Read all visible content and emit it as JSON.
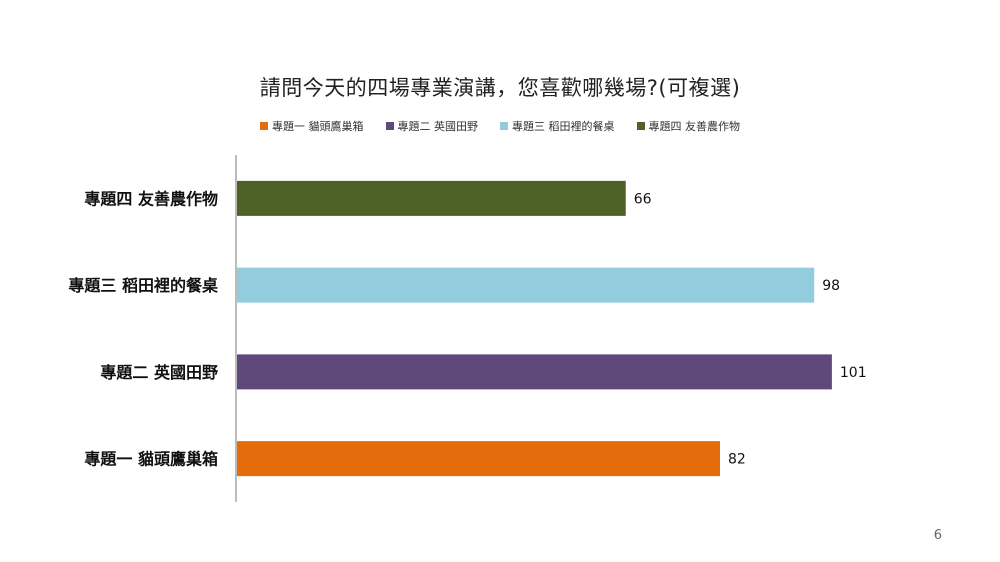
{
  "page_number": "6",
  "chart_data": {
    "type": "bar",
    "orientation": "horizontal",
    "title": "請問今天的四場專業演講，您喜歡哪幾場?(可複選)",
    "xlabel": "",
    "ylabel": "",
    "xlim": [
      0,
      110
    ],
    "grid": false,
    "legend_position": "top",
    "categories": [
      "專題四 友善農作物",
      "專題三 稻田裡的餐桌",
      "專題二 英國田野",
      "專題一 貓頭鷹巢箱"
    ],
    "values": [
      66,
      98,
      101,
      82
    ],
    "colors": [
      "#4e6228",
      "#93cddd",
      "#5f497a",
      "#e46c0a"
    ],
    "legend": [
      {
        "label": "專題一 貓頭鷹巢箱",
        "color": "#e46c0a"
      },
      {
        "label": "專題二 英國田野",
        "color": "#5f497a"
      },
      {
        "label": "專題三 稻田裡的餐桌",
        "color": "#93cddd"
      },
      {
        "label": "專題四 友善農作物",
        "color": "#4e6228"
      }
    ]
  }
}
